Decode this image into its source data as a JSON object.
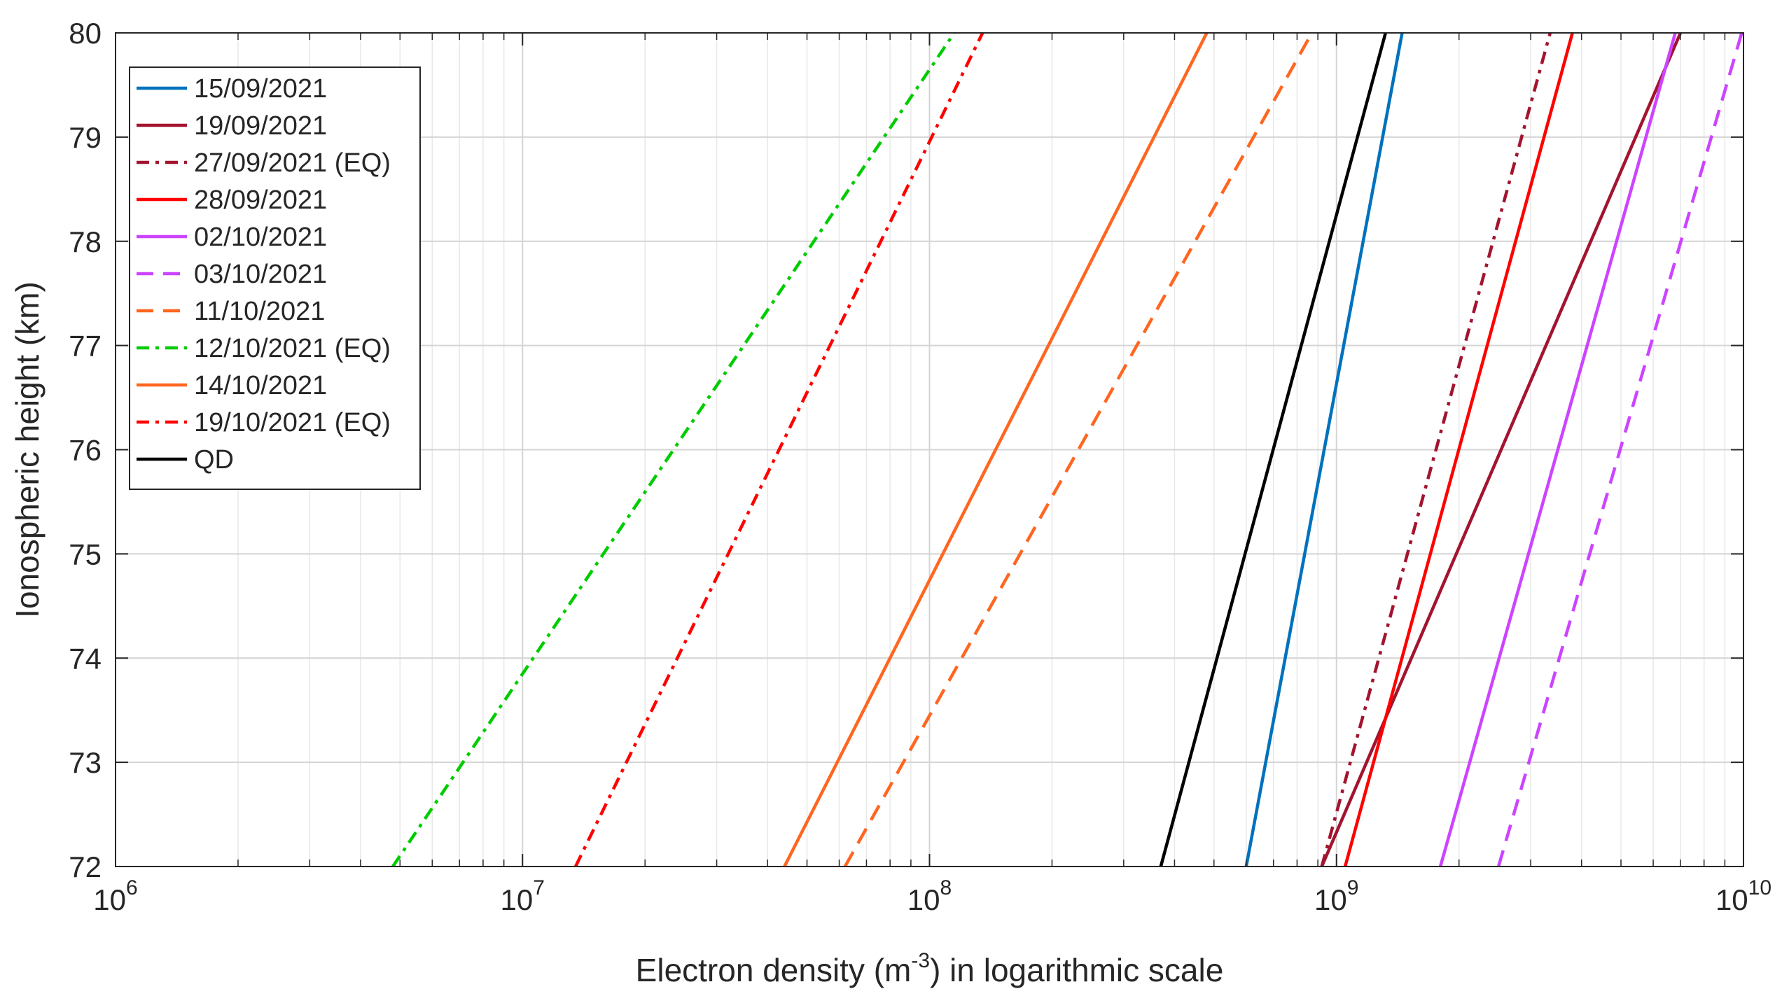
{
  "chart_data": {
    "type": "line",
    "title": "",
    "xlabel": "Electron density (m^-3) in logarithmic scale",
    "xlabel_parts": {
      "prefix": "Electron density (m",
      "sup": "-3",
      "suffix": ") in logarithmic scale"
    },
    "ylabel": "Ionospheric height (km)",
    "xscale": "log",
    "xlim": [
      1000000,
      10000000000
    ],
    "ylim": [
      72,
      80
    ],
    "x_ticks": [
      {
        "base": "10",
        "exp": "6"
      },
      {
        "base": "10",
        "exp": "7"
      },
      {
        "base": "10",
        "exp": "8"
      },
      {
        "base": "10",
        "exp": "9"
      },
      {
        "base": "10",
        "exp": "10"
      }
    ],
    "y_ticks": [
      "72",
      "73",
      "74",
      "75",
      "76",
      "77",
      "78",
      "79",
      "80"
    ],
    "grid": true,
    "legend_position": "top-left",
    "series": [
      {
        "name": "15/09/2021",
        "color": "#0072BD",
        "style": "solid",
        "points": [
          [
            600000000,
            72
          ],
          [
            1450000000,
            80
          ]
        ]
      },
      {
        "name": "19/09/2021",
        "color": "#A2142F",
        "style": "solid",
        "points": [
          [
            920000000,
            72
          ],
          [
            7000000000,
            80
          ]
        ]
      },
      {
        "name": "27/09/2021 (EQ)",
        "color": "#A2142F",
        "style": "dashdot",
        "points": [
          [
            920000000,
            72
          ],
          [
            3350000000,
            80
          ]
        ]
      },
      {
        "name": "28/09/2021",
        "color": "#FF0000",
        "style": "solid",
        "points": [
          [
            1050000000,
            72
          ],
          [
            3800000000,
            80
          ]
        ]
      },
      {
        "name": "02/10/2021",
        "color": "#CC44FF",
        "style": "solid",
        "points": [
          [
            1800000000,
            72
          ],
          [
            6800000000,
            80
          ]
        ]
      },
      {
        "name": "03/10/2021",
        "color": "#CC44FF",
        "style": "dashed",
        "points": [
          [
            2500000000,
            72
          ],
          [
            9900000000,
            80
          ]
        ]
      },
      {
        "name": "11/10/2021",
        "color": "#FF6620",
        "style": "dashed",
        "points": [
          [
            62000000,
            72
          ],
          [
            870000000,
            80
          ]
        ]
      },
      {
        "name": "12/10/2021 (EQ)",
        "color": "#00CC00",
        "style": "dashdot",
        "points": [
          [
            4800000,
            72
          ],
          [
            115000000,
            80
          ]
        ]
      },
      {
        "name": "14/10/2021",
        "color": "#FF6620",
        "style": "solid",
        "points": [
          [
            44000000,
            72
          ],
          [
            480000000,
            80
          ]
        ]
      },
      {
        "name": "19/10/2021 (EQ)",
        "color": "#FF0000",
        "style": "dashdot",
        "points": [
          [
            13500000,
            72
          ],
          [
            135000000,
            80
          ]
        ]
      },
      {
        "name": "QD",
        "color": "#000000",
        "style": "solid",
        "points": [
          [
            370000000,
            72
          ],
          [
            1320000000,
            80
          ]
        ]
      }
    ]
  }
}
